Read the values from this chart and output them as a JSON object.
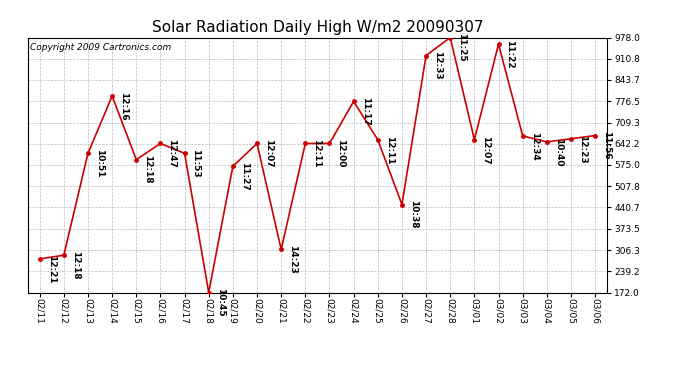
{
  "title": "Solar Radiation Daily High W/m2 20090307",
  "copyright": "Copyright 2009 Cartronics.com",
  "dates": [
    "02/11",
    "02/12",
    "02/13",
    "02/14",
    "02/15",
    "02/16",
    "02/17",
    "02/18",
    "02/19",
    "02/20",
    "02/21",
    "02/22",
    "02/23",
    "02/24",
    "02/25",
    "02/26",
    "02/27",
    "02/28",
    "03/01",
    "03/02",
    "03/03",
    "03/04",
    "03/05",
    "03/06"
  ],
  "values": [
    278,
    290,
    612,
    793,
    592,
    643,
    612,
    172,
    571,
    643,
    308,
    643,
    643,
    776,
    655,
    450,
    921,
    978,
    655,
    957,
    667,
    648,
    658,
    668
  ],
  "labels": [
    "12:21",
    "12:18",
    "10:51",
    "12:16",
    "12:18",
    "12:47",
    "11:53",
    "10:45",
    "11:27",
    "12:07",
    "14:23",
    "12:11",
    "12:00",
    "11:17",
    "12:11",
    "10:38",
    "12:33",
    "11:25",
    "12:07",
    "11:22",
    "12:34",
    "10:40",
    "12:23",
    "11:56"
  ],
  "line_color": "#cc0000",
  "marker_color": "#cc0000",
  "bg_color": "#ffffff",
  "plot_bg_color": "#ffffff",
  "grid_color": "#bbbbbb",
  "title_fontsize": 11,
  "label_fontsize": 6.5,
  "tick_fontsize": 6.5,
  "copyright_fontsize": 6.5,
  "ylim": [
    172.0,
    978.0
  ],
  "yticks": [
    172.0,
    239.2,
    306.3,
    373.5,
    440.7,
    507.8,
    575.0,
    642.2,
    709.3,
    776.5,
    843.7,
    910.8,
    978.0
  ]
}
